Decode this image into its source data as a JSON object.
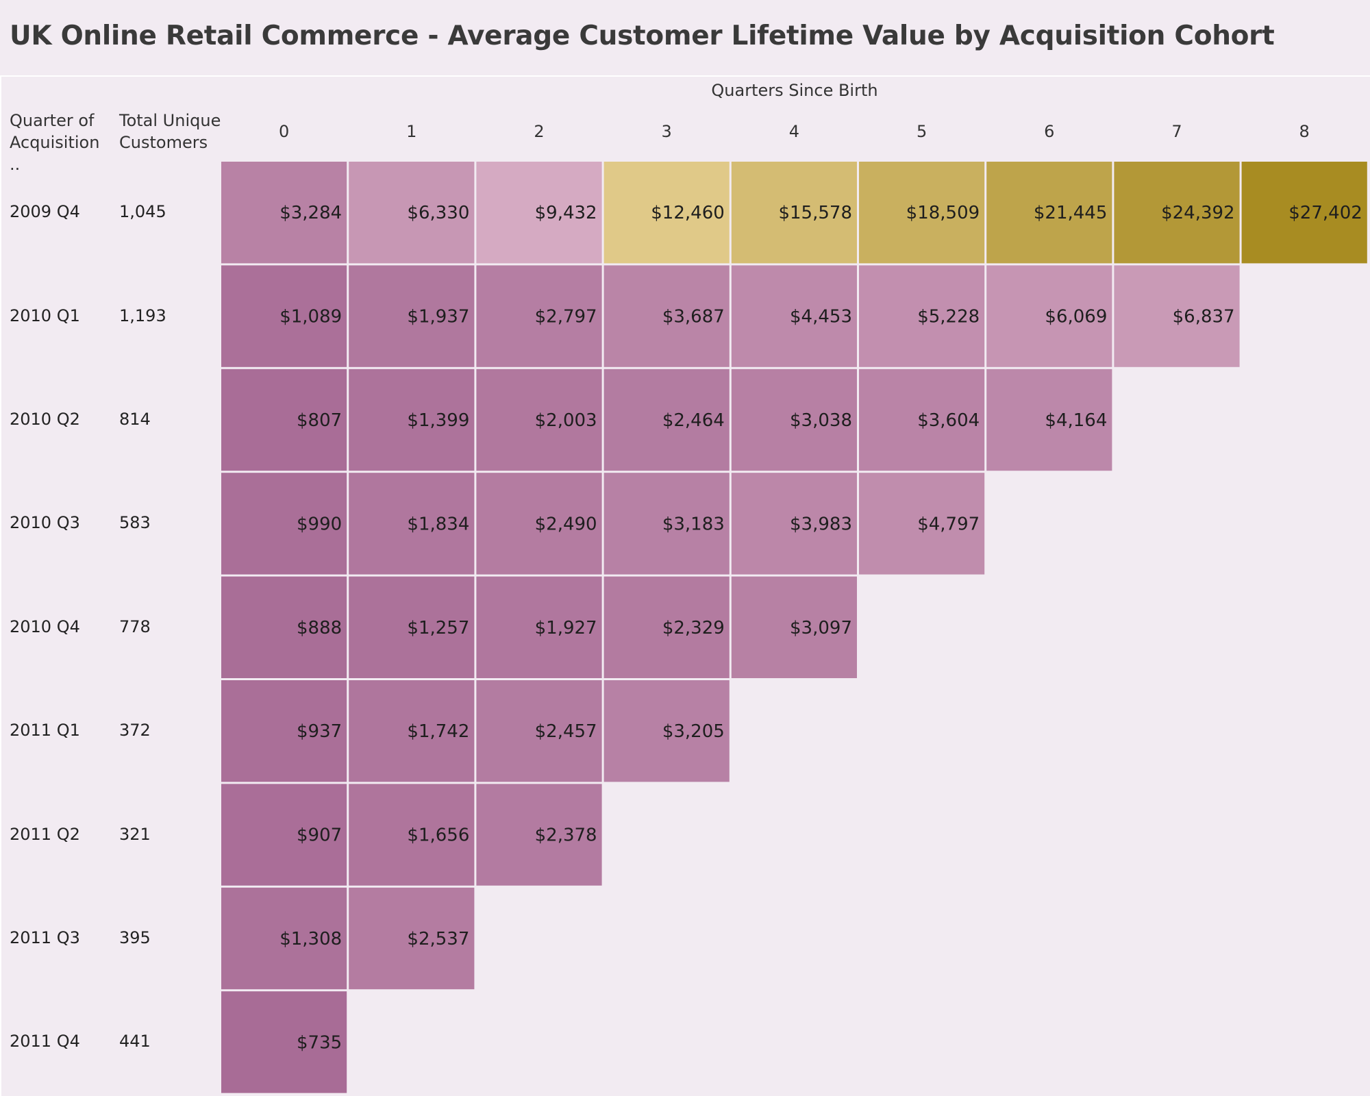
{
  "title": "UK Online Retail Commerce - Average Customer Lifetime Value by Acquisition Cohort",
  "headers": {
    "cohort": "Quarter of Acquisition ..",
    "customers": "Total Unique Customers",
    "quarters_title": "Quarters Since Birth"
  },
  "colors": {
    "background": "#f2ebf2",
    "low": "#a86c96",
    "mid": "#e0b9cc",
    "high": "#a88c22"
  },
  "chart_data": {
    "type": "heatmap",
    "title": "UK Online Retail Commerce - Average Customer Lifetime Value by Acquisition Cohort",
    "xlabel": "Quarters Since Birth",
    "ylabel": "Quarter of Acquisition ..",
    "x": [
      "0",
      "1",
      "2",
      "3",
      "4",
      "5",
      "6",
      "7",
      "8"
    ],
    "y": [
      "2009 Q4",
      "2010 Q1",
      "2010 Q2",
      "2010 Q3",
      "2010 Q4",
      "2011 Q1",
      "2011 Q2",
      "2011 Q3",
      "2011 Q4"
    ],
    "customers": [
      "1,045",
      "1,193",
      "814",
      "583",
      "778",
      "372",
      "321",
      "395",
      "441"
    ],
    "values": [
      [
        3284,
        6330,
        9432,
        12460,
        15578,
        18509,
        21445,
        24392,
        27402
      ],
      [
        1089,
        1937,
        2797,
        3687,
        4453,
        5228,
        6069,
        6837
      ],
      [
        807,
        1399,
        2003,
        2464,
        3038,
        3604,
        4164
      ],
      [
        990,
        1834,
        2490,
        3183,
        3983,
        4797
      ],
      [
        888,
        1257,
        1927,
        2329,
        3097
      ],
      [
        937,
        1742,
        2457,
        3205
      ],
      [
        907,
        1656,
        2378
      ],
      [
        1308,
        2537
      ],
      [
        735
      ]
    ],
    "value_format": "$"
  }
}
